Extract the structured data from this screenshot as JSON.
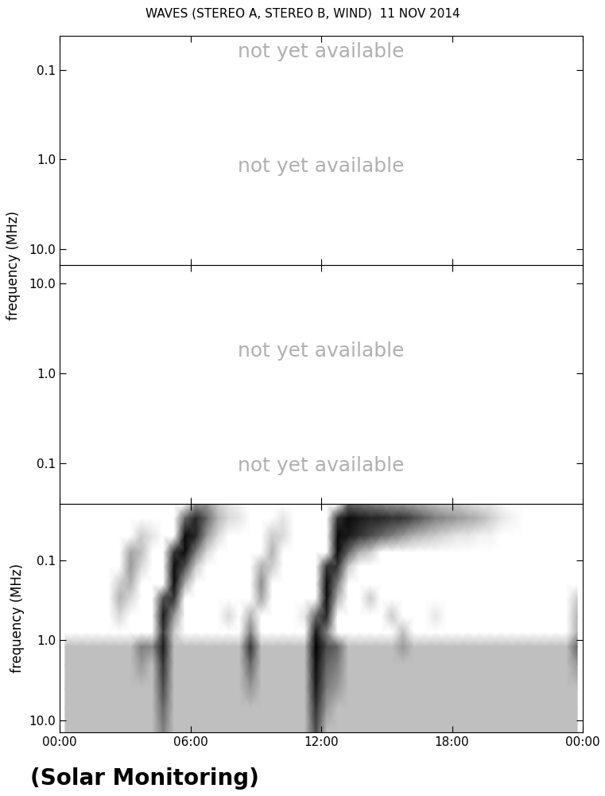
{
  "caption": "(Solar Monitoring)",
  "chart_data": [
    {
      "type": "heatmap",
      "title": "WAVES (STEREO A, STEREO B, WIND)  11 NOV 2014",
      "ylabel": "frequency (MHz)",
      "log": "y",
      "tick_labels": "y",
      "xlim": [
        0,
        24
      ],
      "xticks": [
        0,
        6,
        12,
        18,
        24
      ],
      "ylim": [
        15,
        0.042
      ],
      "yticks": [
        0.1,
        {
          "value": 1,
          "label": "1.0"
        },
        {
          "value": 10,
          "label": "10.0"
        }
      ],
      "annotations": [
        "not yet available",
        "not yet available"
      ]
    },
    {
      "type": "heatmap",
      "log": "y",
      "tick_labels": "y",
      "xlim": [
        0,
        24
      ],
      "xticks": [
        0,
        6,
        12,
        18,
        24
      ],
      "ylim": [
        0.035,
        16
      ],
      "yticks": [
        0.1,
        {
          "value": 1,
          "label": "1.0"
        },
        {
          "value": 10,
          "label": "10.0"
        }
      ],
      "annotations": [
        "not yet available",
        "not yet available"
      ]
    },
    {
      "type": "heatmap",
      "ylabel": "frequency (MHz)",
      "log": "y",
      "xlim": [
        0,
        24
      ],
      "xticks": [
        {
          "value": 0,
          "label": "00:00"
        },
        {
          "value": 6,
          "label": "06:00"
        },
        {
          "value": 12,
          "label": "12:00"
        },
        {
          "value": 18,
          "label": "18:00"
        },
        {
          "value": 24,
          "label": "00:00"
        }
      ],
      "ylim": [
        14,
        0.02
      ],
      "yticks": [
        0.1,
        {
          "value": 1,
          "label": "1.0"
        },
        {
          "value": 10,
          "label": "10.0"
        }
      ],
      "color_range": [
        0,
        1
      ],
      "x": [
        0.25,
        0.75,
        1.25,
        1.75,
        2.25,
        2.75,
        3.25,
        3.75,
        4.25,
        4.75,
        5.25,
        5.75,
        6.25,
        6.75,
        7.25,
        7.75,
        8.25,
        8.75,
        9.25,
        9.75,
        10.25,
        10.75,
        11.25,
        11.75,
        12.25,
        12.75,
        13.25,
        13.75,
        14.25,
        14.75,
        15.25,
        15.75,
        16.25,
        16.75,
        17.25,
        17.75,
        18.25,
        18.75,
        19.25,
        19.75,
        20.25,
        20.75,
        21.25,
        21.75,
        22.25,
        22.75,
        23.25,
        23.75
      ],
      "y": [
        0.02,
        0.03,
        0.05,
        0.08,
        0.12,
        0.2,
        0.3,
        0.5,
        0.8,
        1.2,
        2,
        4,
        7,
        14
      ],
      "intensity": [
        [
          0,
          0,
          0,
          0,
          0,
          0,
          0,
          0,
          0,
          0,
          0,
          0,
          0.4,
          0.4,
          0.2,
          0.1,
          0.05,
          0,
          0,
          0,
          0,
          0,
          0,
          0,
          0,
          0,
          0.6,
          0.55,
          0.5,
          0.45,
          0.4,
          0.4,
          0.35,
          0.3,
          0.25,
          0.2,
          0.2,
          0.15,
          0.1,
          0.1,
          0.05,
          0,
          0,
          0,
          0,
          0,
          0,
          0
        ],
        [
          0,
          0,
          0,
          0,
          0,
          0,
          0,
          0,
          0,
          0,
          0,
          0.6,
          0.85,
          0.6,
          0.3,
          0.15,
          0.1,
          0,
          0,
          0,
          0.1,
          0,
          0,
          0,
          0,
          0.8,
          0.95,
          0.9,
          0.85,
          0.85,
          0.8,
          0.8,
          0.7,
          0.6,
          0.5,
          0.45,
          0.4,
          0.35,
          0.3,
          0.2,
          0.1,
          0.05,
          0,
          0,
          0,
          0,
          0,
          0
        ],
        [
          0,
          0,
          0,
          0,
          0,
          0,
          0,
          0.2,
          0.1,
          0,
          0,
          0.95,
          0.85,
          0.4,
          0.15,
          0,
          0,
          0,
          0,
          0.2,
          0.15,
          0,
          0,
          0,
          0,
          0.95,
          0.9,
          0.8,
          0.7,
          0.6,
          0.5,
          0.4,
          0.3,
          0.25,
          0.2,
          0.15,
          0.1,
          0.1,
          0.05,
          0.05,
          0,
          0,
          0,
          0,
          0,
          0,
          0,
          0
        ],
        [
          0,
          0,
          0,
          0,
          0,
          0,
          0.35,
          0.25,
          0,
          0,
          0.8,
          0.95,
          0.5,
          0.15,
          0,
          0,
          0,
          0,
          0,
          0.3,
          0,
          0,
          0,
          0,
          0,
          0.95,
          0.6,
          0.3,
          0.2,
          0,
          0,
          0,
          0,
          0,
          0,
          0,
          0,
          0,
          0,
          0,
          0,
          0,
          0,
          0,
          0,
          0,
          0,
          0
        ],
        [
          0,
          0,
          0,
          0,
          0,
          0,
          0.4,
          0.15,
          0,
          0,
          0.95,
          0.7,
          0.2,
          0,
          0,
          0,
          0,
          0,
          0.3,
          0.2,
          0,
          0,
          0,
          0,
          0.8,
          0.8,
          0.2,
          0,
          0,
          0,
          0,
          0,
          0,
          0,
          0,
          0,
          0,
          0,
          0,
          0,
          0,
          0,
          0,
          0,
          0,
          0,
          0,
          0
        ],
        [
          0,
          0,
          0,
          0,
          0,
          0.2,
          0.3,
          0,
          0,
          0,
          0.95,
          0.3,
          0,
          0,
          0,
          0,
          0,
          0,
          0.45,
          0,
          0,
          0,
          0,
          0,
          0.95,
          0.5,
          0,
          0,
          0,
          0,
          0,
          0,
          0,
          0,
          0,
          0,
          0,
          0,
          0,
          0,
          0,
          0,
          0,
          0,
          0,
          0,
          0,
          0
        ],
        [
          0,
          0,
          0,
          0,
          0,
          0.3,
          0.15,
          0,
          0,
          0.7,
          0.8,
          0,
          0,
          0,
          0,
          0,
          0,
          0,
          0.35,
          0,
          0,
          0,
          0,
          0,
          0.95,
          0.3,
          0,
          0,
          0.2,
          0,
          0,
          0,
          0,
          0,
          0,
          0,
          0,
          0,
          0,
          0,
          0,
          0,
          0,
          0,
          0,
          0,
          0,
          0.2
        ],
        [
          0,
          0,
          0,
          0,
          0,
          0.15,
          0,
          0,
          0,
          0.9,
          0.4,
          0,
          0,
          0,
          0,
          0.15,
          0,
          0.3,
          0,
          0,
          0,
          0,
          0.1,
          0.6,
          0.85,
          0,
          0,
          0,
          0,
          0,
          0.2,
          0,
          0,
          0,
          0.1,
          0,
          0,
          0,
          0,
          0,
          0,
          0,
          0,
          0,
          0,
          0,
          0,
          0.3
        ],
        [
          0,
          0,
          0,
          0,
          0,
          0,
          0,
          0,
          0,
          0.8,
          0.2,
          0,
          0,
          0,
          0,
          0,
          0,
          0.5,
          0,
          0,
          0,
          0,
          0,
          0.9,
          0.5,
          0,
          0,
          0,
          0,
          0,
          0,
          0.25,
          0,
          0,
          0,
          0,
          0,
          0,
          0,
          0,
          0,
          0,
          0,
          0,
          0,
          0,
          0,
          0.3
        ],
        [
          0.25,
          0.25,
          0.25,
          0.25,
          0.25,
          0.25,
          0.25,
          0.5,
          0.45,
          0.9,
          0.25,
          0.25,
          0.25,
          0.25,
          0.25,
          0.25,
          0.25,
          0.8,
          0.25,
          0.25,
          0.25,
          0.25,
          0.25,
          1.0,
          0.7,
          0.6,
          0.25,
          0.25,
          0.25,
          0.25,
          0.25,
          0.4,
          0.25,
          0.25,
          0.25,
          0.25,
          0.25,
          0.25,
          0.25,
          0.25,
          0.25,
          0.25,
          0.25,
          0.25,
          0.25,
          0.25,
          0.25,
          0.6
        ],
        [
          0.25,
          0.25,
          0.25,
          0.25,
          0.25,
          0.25,
          0.25,
          0.4,
          0.25,
          0.8,
          0.25,
          0.25,
          0.25,
          0.25,
          0.25,
          0.25,
          0.25,
          0.6,
          0.25,
          0.25,
          0.25,
          0.25,
          0.25,
          0.95,
          0.6,
          0.5,
          0.25,
          0.25,
          0.25,
          0.25,
          0.25,
          0.25,
          0.25,
          0.25,
          0.25,
          0.25,
          0.25,
          0.25,
          0.25,
          0.25,
          0.25,
          0.25,
          0.25,
          0.25,
          0.25,
          0.25,
          0.25,
          0.4
        ],
        [
          0.25,
          0.25,
          0.25,
          0.25,
          0.25,
          0.25,
          0.25,
          0.25,
          0.25,
          0.7,
          0.25,
          0.25,
          0.25,
          0.25,
          0.25,
          0.25,
          0.25,
          0.4,
          0.25,
          0.25,
          0.25,
          0.25,
          0.25,
          0.9,
          0.5,
          0.4,
          0.25,
          0.25,
          0.25,
          0.25,
          0.25,
          0.25,
          0.25,
          0.25,
          0.25,
          0.25,
          0.25,
          0.25,
          0.25,
          0.25,
          0.25,
          0.25,
          0.25,
          0.25,
          0.25,
          0.25,
          0.25,
          0.25
        ],
        [
          0.25,
          0.25,
          0.25,
          0.25,
          0.25,
          0.25,
          0.25,
          0.25,
          0.25,
          0.6,
          0.25,
          0.25,
          0.25,
          0.25,
          0.25,
          0.25,
          0.25,
          0.25,
          0.25,
          0.25,
          0.25,
          0.25,
          0.25,
          0.8,
          0.4,
          0.25,
          0.25,
          0.25,
          0.25,
          0.25,
          0.25,
          0.25,
          0.25,
          0.25,
          0.25,
          0.25,
          0.25,
          0.25,
          0.25,
          0.25,
          0.25,
          0.25,
          0.25,
          0.25,
          0.25,
          0.25,
          0.25,
          0.25
        ],
        [
          0.25,
          0.25,
          0.25,
          0.25,
          0.25,
          0.25,
          0.25,
          0.25,
          0.25,
          0.5,
          0.25,
          0.25,
          0.25,
          0.25,
          0.25,
          0.25,
          0.25,
          0.25,
          0.25,
          0.25,
          0.25,
          0.25,
          0.25,
          0.7,
          0.25,
          0.25,
          0.25,
          0.25,
          0.25,
          0.25,
          0.25,
          0.25,
          0.25,
          0.25,
          0.25,
          0.25,
          0.25,
          0.25,
          0.25,
          0.25,
          0.25,
          0.25,
          0.25,
          0.25,
          0.25,
          0.25,
          0.25,
          0.25
        ]
      ]
    }
  ]
}
